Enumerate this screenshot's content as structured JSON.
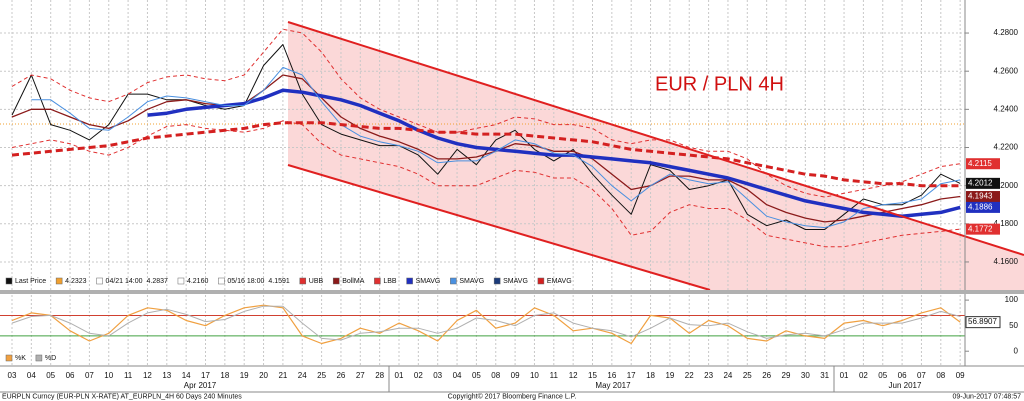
{
  "chart_data": [
    {
      "type": "line",
      "title": "EUR / PLN 4H",
      "categories": [
        "03",
        "04",
        "05",
        "06",
        "07",
        "10",
        "11",
        "12",
        "13",
        "14",
        "17",
        "18",
        "19",
        "20",
        "21",
        "24",
        "25",
        "26",
        "27",
        "28",
        "01",
        "02",
        "03",
        "04",
        "05",
        "08",
        "09",
        "10",
        "11",
        "12",
        "15",
        "16",
        "17",
        "18",
        "19",
        "22",
        "23",
        "24",
        "25",
        "26",
        "29",
        "30",
        "31",
        "01",
        "02",
        "05",
        "06",
        "07",
        "08",
        "09"
      ],
      "months": [
        "Apr 2017",
        "May 2017",
        "Jun 2017"
      ],
      "ylim": [
        4.1453,
        4.2947
      ],
      "yticks": [
        {
          "value": 4.16,
          "label": "4.1600"
        },
        {
          "value": 4.18,
          "label": "4.1800"
        },
        {
          "value": 4.2,
          "label": "4.2000"
        },
        {
          "value": 4.22,
          "label": "4.2200"
        },
        {
          "value": 4.24,
          "label": "4.2400"
        },
        {
          "value": 4.26,
          "label": "4.2600"
        },
        {
          "value": 4.28,
          "label": "4.2800"
        }
      ],
      "grid": true,
      "legend_stats": [
        {
          "value": 4.2323,
          "color": "#f0a030",
          "line": true
        },
        {
          "time": "04/21 14:00",
          "value": 4.2837
        },
        {
          "value": 4.216,
          "label": "4.2160"
        },
        {
          "time": "05/16 18:00",
          "value": 4.1591
        }
      ],
      "series": [
        {
          "name": "Last Price",
          "color": "#111111",
          "width": 1,
          "tag": true,
          "values": [
            4.237,
            4.258,
            4.232,
            4.229,
            4.224,
            4.232,
            4.248,
            4.248,
            4.245,
            4.245,
            4.242,
            4.24,
            4.242,
            4.263,
            4.274,
            4.248,
            4.232,
            4.227,
            4.224,
            4.221,
            4.221,
            4.216,
            4.206,
            4.219,
            4.211,
            4.224,
            4.229,
            4.219,
            4.213,
            4.219,
            4.206,
            4.195,
            4.185,
            4.211,
            4.208,
            4.198,
            4.2,
            4.203,
            4.185,
            4.179,
            4.182,
            4.177,
            4.177,
            4.185,
            4.193,
            4.19,
            4.19,
            4.195,
            4.206,
            4.2012
          ]
        },
        {
          "name": "UBB",
          "color": "#e03030",
          "width": 1,
          "dash": true,
          "tag": true,
          "values": [
            4.252,
            4.258,
            4.256,
            4.25,
            4.246,
            4.244,
            4.248,
            4.254,
            4.257,
            4.258,
            4.256,
            4.255,
            4.258,
            4.27,
            4.282,
            4.28,
            4.27,
            4.256,
            4.246,
            4.24,
            4.236,
            4.232,
            4.228,
            4.228,
            4.23,
            4.232,
            4.236,
            4.235,
            4.232,
            4.232,
            4.23,
            4.224,
            4.222,
            4.224,
            4.224,
            4.22,
            4.218,
            4.218,
            4.214,
            4.206,
            4.2,
            4.196,
            4.194,
            4.196,
            4.198,
            4.2,
            4.202,
            4.206,
            4.21,
            4.2115
          ]
        },
        {
          "name": "BollMA",
          "color": "#8b1a1a",
          "width": 1.3,
          "tag": true,
          "values": [
            4.236,
            4.24,
            4.24,
            4.236,
            4.232,
            4.23,
            4.234,
            4.24,
            4.244,
            4.245,
            4.243,
            4.242,
            4.243,
            4.25,
            4.258,
            4.256,
            4.246,
            4.236,
            4.23,
            4.226,
            4.223,
            4.219,
            4.214,
            4.214,
            4.215,
            4.218,
            4.222,
            4.221,
            4.218,
            4.218,
            4.214,
            4.206,
            4.198,
            4.2,
            4.205,
            4.205,
            4.203,
            4.203,
            4.198,
            4.19,
            4.186,
            4.183,
            4.181,
            4.182,
            4.184,
            4.186,
            4.188,
            4.19,
            4.193,
            4.1943
          ]
        },
        {
          "name": "LBB",
          "color": "#e03030",
          "width": 1,
          "dash": true,
          "tag": true,
          "values": [
            4.22,
            4.222,
            4.224,
            4.222,
            4.218,
            4.216,
            4.22,
            4.226,
            4.231,
            4.232,
            4.23,
            4.229,
            4.228,
            4.23,
            4.234,
            4.232,
            4.222,
            4.216,
            4.214,
            4.212,
            4.21,
            4.206,
            4.2,
            4.2,
            4.2,
            4.204,
            4.208,
            4.207,
            4.204,
            4.204,
            4.198,
            4.188,
            4.174,
            4.176,
            4.186,
            4.19,
            4.188,
            4.188,
            4.182,
            4.174,
            4.172,
            4.17,
            4.168,
            4.168,
            4.17,
            4.172,
            4.174,
            4.175,
            4.176,
            4.1772
          ]
        },
        {
          "name": "SMAVG",
          "color": "#2030c0",
          "width": 3.5,
          "tag": true,
          "values": [
            null,
            null,
            null,
            null,
            null,
            null,
            null,
            4.237,
            4.238,
            4.24,
            4.241,
            4.242,
            4.243,
            4.246,
            4.25,
            4.249,
            4.247,
            4.245,
            4.242,
            4.238,
            4.234,
            4.229,
            4.225,
            4.222,
            4.22,
            4.219,
            4.218,
            4.217,
            4.216,
            4.216,
            4.215,
            4.214,
            4.213,
            4.212,
            4.21,
            4.208,
            4.206,
            4.204,
            4.201,
            4.198,
            4.195,
            4.192,
            4.19,
            4.188,
            4.186,
            4.185,
            4.184,
            4.185,
            4.186,
            4.1886
          ]
        },
        {
          "name": "SMAVG",
          "color": "#4a90e0",
          "width": 1,
          "values": [
            null,
            4.245,
            4.245,
            4.238,
            4.23,
            4.229,
            4.236,
            4.244,
            4.247,
            4.246,
            4.244,
            4.242,
            4.242,
            4.25,
            4.262,
            4.258,
            4.244,
            4.232,
            4.226,
            4.223,
            4.221,
            4.218,
            4.212,
            4.213,
            4.213,
            4.218,
            4.224,
            4.222,
            4.217,
            4.216,
            4.21,
            4.2,
            4.192,
            4.2,
            4.206,
            4.203,
            4.201,
            4.202,
            4.193,
            4.184,
            4.181,
            4.179,
            4.178,
            4.181,
            4.188,
            4.19,
            4.191,
            4.193,
            4.201,
            4.203
          ]
        },
        {
          "name": "SMAVG",
          "color": "#1a3a7a",
          "width": 1,
          "values": [
            null,
            null,
            null,
            null,
            null,
            null,
            null,
            null,
            null,
            null,
            null,
            null,
            null,
            null,
            null,
            null,
            null,
            null,
            null,
            null,
            null,
            null,
            null,
            null,
            null,
            null,
            null,
            null,
            null,
            null,
            null,
            null,
            null,
            null,
            null,
            null,
            null,
            null,
            null,
            null,
            null,
            null,
            null,
            null,
            null,
            null,
            null,
            null,
            null,
            null
          ]
        },
        {
          "name": "EMAVG",
          "color": "#d42020",
          "width": 3,
          "dash": true,
          "values": [
            4.216,
            4.217,
            4.218,
            4.219,
            4.22,
            4.221,
            4.223,
            4.225,
            4.226,
            4.227,
            4.228,
            4.229,
            4.23,
            4.232,
            4.233,
            4.233,
            4.233,
            4.232,
            4.231,
            4.23,
            4.23,
            4.229,
            4.228,
            4.228,
            4.227,
            4.227,
            4.227,
            4.226,
            4.225,
            4.224,
            4.223,
            4.221,
            4.219,
            4.218,
            4.217,
            4.216,
            4.215,
            4.214,
            4.212,
            4.21,
            4.208,
            4.206,
            4.205,
            4.203,
            4.202,
            4.201,
            4.201,
            4.2,
            4.2,
            4.2
          ]
        }
      ]
    },
    {
      "type": "line",
      "ylim": [
        -27,
        110
      ],
      "yticks": [
        0,
        50,
        100
      ],
      "levels": [
        {
          "value": 70,
          "color": "#d04030"
        },
        {
          "value": 30,
          "color": "#40a040"
        }
      ],
      "series": [
        {
          "name": "%K",
          "color": "#f0a040",
          "width": 1.2,
          "tag": true,
          "values": [
            60,
            75,
            70,
            40,
            20,
            35,
            70,
            85,
            80,
            60,
            50,
            70,
            85,
            90,
            85,
            30,
            15,
            25,
            45,
            35,
            55,
            40,
            20,
            60,
            80,
            45,
            55,
            85,
            70,
            40,
            45,
            35,
            15,
            70,
            65,
            35,
            60,
            50,
            25,
            20,
            40,
            30,
            25,
            55,
            60,
            50,
            60,
            75,
            85,
            56.8907
          ]
        },
        {
          "name": "%D",
          "color": "#b0b0b0",
          "width": 1,
          "values": [
            55,
            68,
            70,
            55,
            35,
            30,
            55,
            75,
            82,
            72,
            58,
            62,
            78,
            88,
            88,
            55,
            25,
            22,
            35,
            38,
            45,
            45,
            35,
            45,
            65,
            60,
            50,
            70,
            75,
            55,
            45,
            40,
            28,
            45,
            65,
            52,
            50,
            55,
            38,
            25,
            32,
            35,
            30,
            42,
            55,
            55,
            55,
            65,
            78,
            68
          ]
        }
      ]
    }
  ],
  "footer": {
    "left": "EURPLN Curncy (EUR-PLN X-RATE) AT_EURPLN_4H 60 Days 240 Minutes",
    "center": "Copyright© 2017 Bloomberg Finance L.P.",
    "right": "09-Jun-2017 07:48:57"
  }
}
